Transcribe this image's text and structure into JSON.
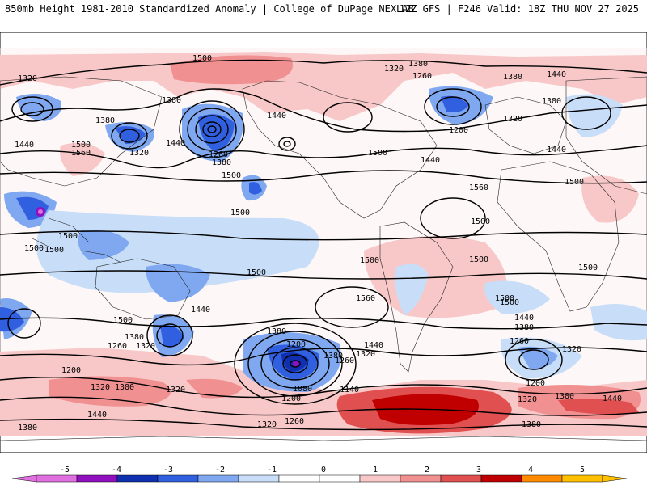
{
  "header": {
    "title": "850mb Height 1981-2010 Standardized Anomaly | College of DuPage NEXLAB",
    "run_info": "12Z GFS | F246 Valid: 18Z THU NOV 27 2025"
  },
  "colorbar": {
    "ticks": [
      "-5",
      "-4",
      "-3",
      "-2",
      "-1",
      "0",
      "1",
      "2",
      "3",
      "4",
      "5"
    ],
    "colors": [
      "#e070e0",
      "#9010c0",
      "#1030b0",
      "#3060e0",
      "#80a8f0",
      "#c8def8",
      "#ffffff",
      "#ffffff",
      "#f8c8c8",
      "#f09090",
      "#e05050",
      "#c00000",
      "#ff8c00",
      "#ffc000"
    ]
  },
  "contour_labels": [
    {
      "id": "c01",
      "text": "1500"
    },
    {
      "id": "c02",
      "text": "1320"
    },
    {
      "id": "c03",
      "text": "1380"
    },
    {
      "id": "c04",
      "text": "1260"
    },
    {
      "id": "c05",
      "text": "1380"
    },
    {
      "id": "c06",
      "text": "1440"
    },
    {
      "id": "c07",
      "text": "1320"
    },
    {
      "id": "c08",
      "text": "1380"
    },
    {
      "id": "c09",
      "text": "1380"
    },
    {
      "id": "c10",
      "text": "1440"
    },
    {
      "id": "c11",
      "text": "1500"
    },
    {
      "id": "c12",
      "text": "1560"
    },
    {
      "id": "c13",
      "text": "1320"
    },
    {
      "id": "c14",
      "text": "1440"
    },
    {
      "id": "c15",
      "text": "1260"
    },
    {
      "id": "c16",
      "text": "1380"
    },
    {
      "id": "c17",
      "text": "1500"
    },
    {
      "id": "c18",
      "text": "1440"
    },
    {
      "id": "c19",
      "text": "1500"
    },
    {
      "id": "c20",
      "text": "1440"
    },
    {
      "id": "c21",
      "text": "1200"
    },
    {
      "id": "c22",
      "text": "1320"
    },
    {
      "id": "c23",
      "text": "1380"
    },
    {
      "id": "c24",
      "text": "1440"
    },
    {
      "id": "c25",
      "text": "1500"
    },
    {
      "id": "c26",
      "text": "1500"
    },
    {
      "id": "c27",
      "text": "1500"
    },
    {
      "id": "c28",
      "text": "1560"
    },
    {
      "id": "c29",
      "text": "1500"
    },
    {
      "id": "c30",
      "text": "1500"
    },
    {
      "id": "c31",
      "text": "1500"
    },
    {
      "id": "c32",
      "text": "1500"
    },
    {
      "id": "c33",
      "text": "1500"
    },
    {
      "id": "c34",
      "text": "1500"
    },
    {
      "id": "c35",
      "text": "1560"
    },
    {
      "id": "c36",
      "text": "1500"
    },
    {
      "id": "c37",
      "text": "1440"
    },
    {
      "id": "c38",
      "text": "1500"
    },
    {
      "id": "c39",
      "text": "1380"
    },
    {
      "id": "c40",
      "text": "1320"
    },
    {
      "id": "c41",
      "text": "1260"
    },
    {
      "id": "c42",
      "text": "1200"
    },
    {
      "id": "c43",
      "text": "1380"
    },
    {
      "id": "c44",
      "text": "1200"
    },
    {
      "id": "c45",
      "text": "1380"
    },
    {
      "id": "c46",
      "text": "1320"
    },
    {
      "id": "c47",
      "text": "1260"
    },
    {
      "id": "c48",
      "text": "1140"
    },
    {
      "id": "c49",
      "text": "1080"
    },
    {
      "id": "c50",
      "text": "1200"
    },
    {
      "id": "c51",
      "text": "1440"
    },
    {
      "id": "c52",
      "text": "1500"
    },
    {
      "id": "c53",
      "text": "1440"
    },
    {
      "id": "c54",
      "text": "1380"
    },
    {
      "id": "c55",
      "text": "1260"
    },
    {
      "id": "c56",
      "text": "1320"
    },
    {
      "id": "c57",
      "text": "1200"
    },
    {
      "id": "c58",
      "text": "1320"
    },
    {
      "id": "c59",
      "text": "1380"
    },
    {
      "id": "c60",
      "text": "1440"
    },
    {
      "id": "c61",
      "text": "1380"
    },
    {
      "id": "c62",
      "text": "1320"
    },
    {
      "id": "c63",
      "text": "1380"
    },
    {
      "id": "c64",
      "text": "1320"
    },
    {
      "id": "c65",
      "text": "1440"
    },
    {
      "id": "c66",
      "text": "1380"
    },
    {
      "id": "c67",
      "text": "1320"
    },
    {
      "id": "c68",
      "text": "1260"
    },
    {
      "id": "c69",
      "text": "1500"
    }
  ]
}
